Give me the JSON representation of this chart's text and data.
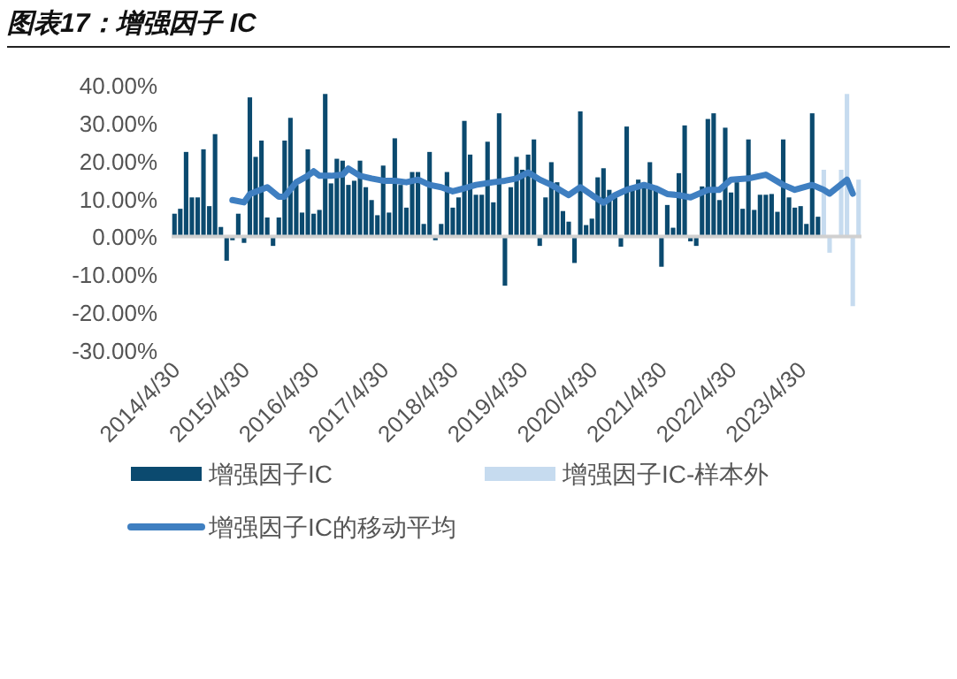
{
  "chart_data": {
    "type": "bar",
    "title": "图表17：增强因子 IC",
    "categories": [
      "2014/4/30",
      null,
      null,
      null,
      null,
      null,
      null,
      null,
      null,
      null,
      null,
      null,
      "2015/4/30",
      null,
      null,
      null,
      null,
      null,
      null,
      null,
      null,
      null,
      null,
      null,
      "2016/4/30",
      null,
      null,
      null,
      null,
      null,
      null,
      null,
      null,
      null,
      null,
      null,
      "2017/4/30",
      null,
      null,
      null,
      null,
      null,
      null,
      null,
      null,
      null,
      null,
      null,
      "2018/4/30",
      null,
      null,
      null,
      null,
      null,
      null,
      null,
      null,
      null,
      null,
      null,
      "2019/4/30",
      null,
      null,
      null,
      null,
      null,
      null,
      null,
      null,
      null,
      null,
      null,
      "2020/4/30",
      null,
      null,
      null,
      null,
      null,
      null,
      null,
      null,
      null,
      null,
      null,
      "2021/4/30",
      null,
      null,
      null,
      null,
      null,
      null,
      null,
      null,
      null,
      null,
      null,
      "2022/4/30",
      null,
      null,
      null,
      null,
      null,
      null,
      null,
      null,
      null,
      null,
      null,
      "2023/4/30",
      null,
      null,
      null,
      null,
      null,
      null,
      null,
      null,
      null,
      null
    ],
    "series": [
      {
        "name": "增强因子IC",
        "color": "#0b4a6f",
        "values": [
          6,
          7.3,
          22.3,
          10.3,
          10.3,
          23,
          8,
          27,
          2.5,
          -6.4,
          -1,
          6,
          -1.7,
          36.7,
          21,
          25.3,
          5,
          -2.5,
          5,
          25.3,
          31.3,
          13.6,
          6.3,
          23,
          6,
          7,
          37.6,
          14,
          20.5,
          20,
          13.6,
          14.7,
          20,
          13,
          9.6,
          5.6,
          18.7,
          6.3,
          25.9,
          13.6,
          7.6,
          17,
          17,
          3.3,
          22.3,
          -1,
          3.3,
          17,
          7.6,
          10.3,
          30.5,
          21.6,
          11,
          11,
          25,
          9,
          32.5,
          -13,
          13,
          21,
          17.6,
          21.6,
          25.6,
          -2.5,
          10.3,
          19.6,
          14.3,
          6.7,
          3.9,
          -7,
          33,
          3,
          4.7,
          15.6,
          18,
          12.3,
          10.3,
          -2.7,
          29,
          13.3,
          15,
          14,
          19.6,
          13,
          -8,
          8.3,
          2.3,
          16.7,
          29.3,
          -1.3,
          -2.5,
          13.2,
          31,
          32.5,
          9.6,
          28.7,
          11.6,
          14.3,
          7.3,
          25.6,
          7,
          11,
          11,
          11.2,
          6.5,
          25.6,
          10.3,
          7.6,
          8,
          3.3,
          32.5,
          5.2,
          null,
          null,
          null,
          null,
          null,
          null,
          null
        ]
      },
      {
        "name": "增强因子IC-样本外",
        "color": "#c6dbef",
        "values": [
          null,
          null,
          null,
          null,
          null,
          null,
          null,
          null,
          null,
          null,
          null,
          null,
          null,
          null,
          null,
          null,
          null,
          null,
          null,
          null,
          null,
          null,
          null,
          null,
          null,
          null,
          null,
          null,
          null,
          null,
          null,
          null,
          null,
          null,
          null,
          null,
          null,
          null,
          null,
          null,
          null,
          null,
          null,
          null,
          null,
          null,
          null,
          null,
          null,
          null,
          null,
          null,
          null,
          null,
          null,
          null,
          null,
          null,
          null,
          null,
          null,
          null,
          null,
          null,
          null,
          null,
          null,
          null,
          null,
          null,
          null,
          null,
          null,
          null,
          null,
          null,
          null,
          null,
          null,
          null,
          null,
          null,
          null,
          null,
          null,
          null,
          null,
          null,
          null,
          null,
          null,
          null,
          null,
          null,
          null,
          null,
          null,
          null,
          null,
          null,
          null,
          null,
          null,
          null,
          null,
          null,
          null,
          null,
          null,
          null,
          null,
          null,
          17.6,
          -4.3,
          null,
          17.6,
          37.6,
          -18.4,
          15
        ]
      },
      {
        "name": "增强因子IC的移动平均",
        "type": "line",
        "color": "#3f7fc1",
        "values": [
          null,
          null,
          null,
          null,
          null,
          null,
          null,
          null,
          null,
          null,
          9.6,
          null,
          9,
          11.2,
          null,
          null,
          13,
          null,
          10.5,
          10.5,
          null,
          14.3,
          null,
          16,
          17.2,
          16,
          null,
          16,
          null,
          16.3,
          17.9,
          null,
          16,
          null,
          15.3,
          null,
          14.7,
          null,
          14.7,
          null,
          14.3,
          null,
          15,
          null,
          13.6,
          null,
          13,
          null,
          11.9,
          null,
          12.7,
          null,
          13.6,
          null,
          null,
          14.3,
          null,
          14.7,
          null,
          15.3,
          null,
          16.9,
          null,
          15,
          null,
          13.6,
          null,
          null,
          10.9,
          null,
          13,
          null,
          10.9,
          null,
          8.9,
          null,
          10.9,
          null,
          12.3,
          null,
          null,
          13.6,
          null,
          12.7,
          null,
          11.2,
          null,
          10.9,
          null,
          10.3,
          null,
          null,
          12.3,
          null,
          12.3,
          null,
          15,
          null,
          null,
          15.3,
          null,
          null,
          16.3,
          null,
          null,
          13.6,
          null,
          12.3,
          null,
          null,
          13.6,
          null,
          12.3,
          11.3,
          null,
          null,
          15,
          11.3,
          null
        ]
      }
    ],
    "ylim": [
      -30,
      40
    ],
    "yticks": [
      {
        "value": -30,
        "label": "-30.00%"
      },
      {
        "value": -20,
        "label": "-20.00%"
      },
      {
        "value": -10,
        "label": "-10.00%"
      },
      {
        "value": 0,
        "label": "0.00%"
      },
      {
        "value": 10,
        "label": "10.00%"
      },
      {
        "value": 20,
        "label": "20.00%"
      },
      {
        "value": 30,
        "label": "30.00%"
      },
      {
        "value": 40,
        "label": "40.00%"
      }
    ],
    "legend": "bottom"
  }
}
